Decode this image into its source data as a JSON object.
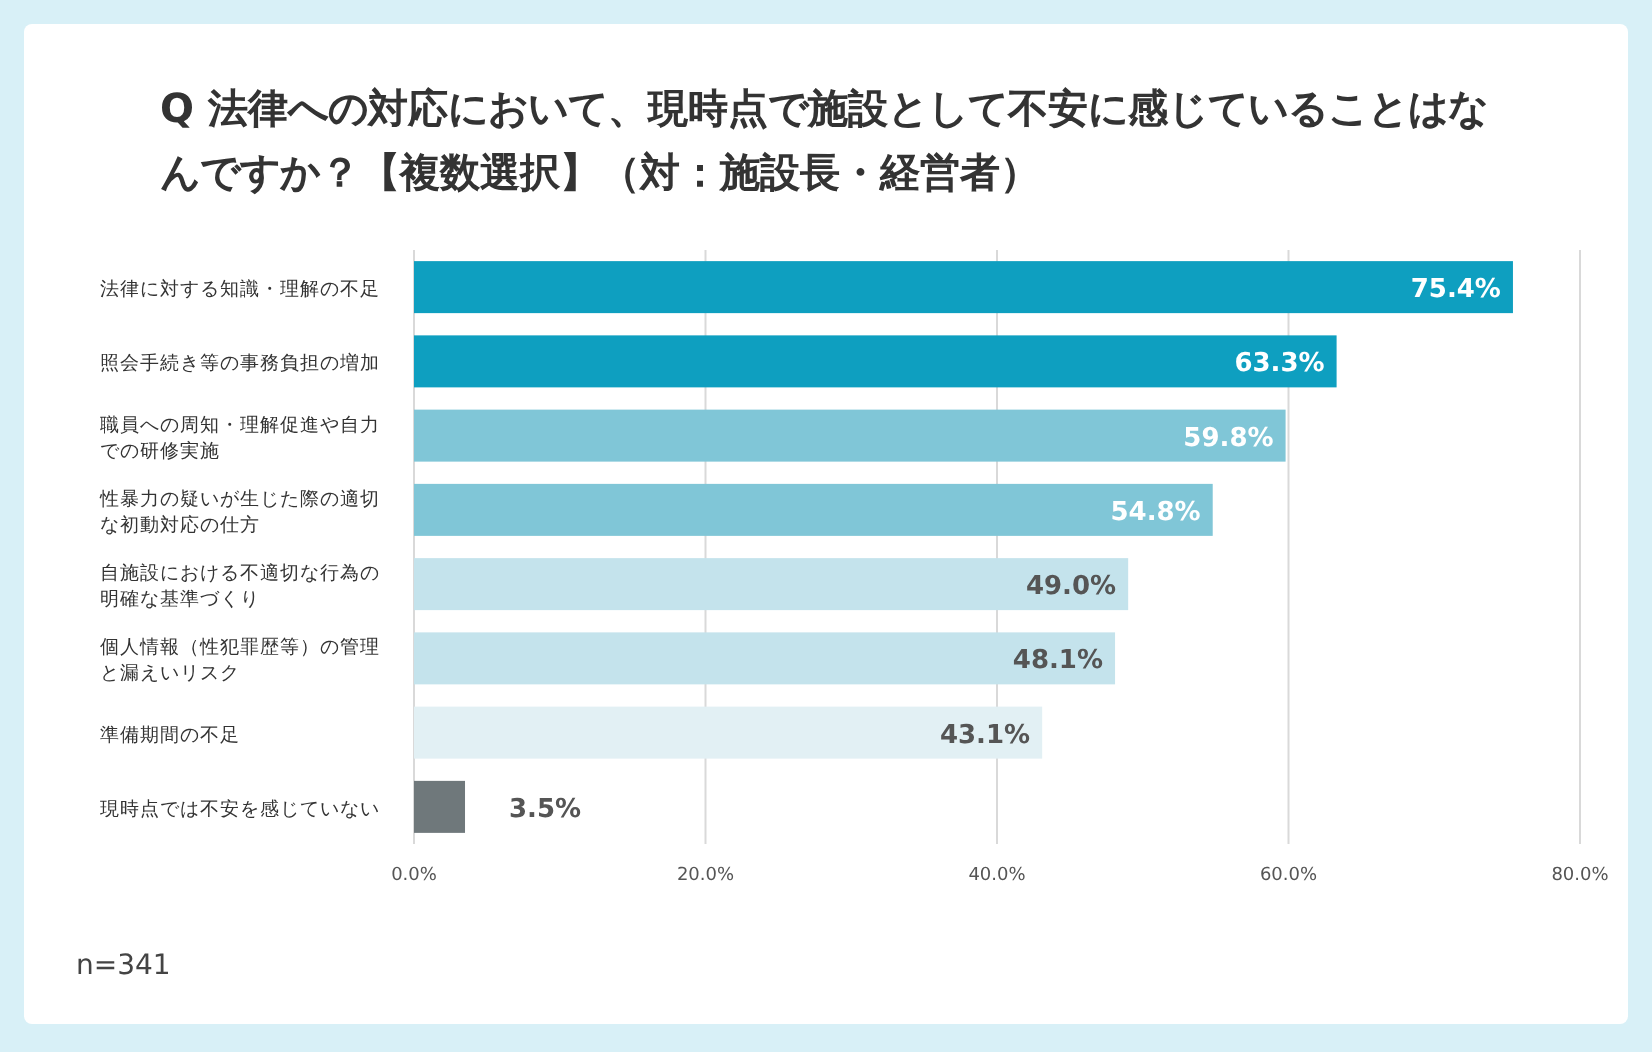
{
  "chart_data": {
    "type": "bar",
    "orientation": "horizontal",
    "title": "Q 法律への対応において、現時点で施設として不安に感じていることはなんですか？【複数選択】（対：施設長・経営者）",
    "categories": [
      "法律に対する知識・理解の不足",
      "照会手続き等の事務負担の増加",
      "職員への周知・理解促進や自力での研修実施",
      "性暴力の疑いが生じた際の適切な初動対応の仕方",
      "自施設における不適切な行為の明確な基準づくり",
      "個人情報（性犯罪歴等）の管理と漏えいリスク",
      "準備期間の不足",
      "現時点では不安を感じていない"
    ],
    "values": [
      75.4,
      63.3,
      59.8,
      54.8,
      49.0,
      48.1,
      43.1,
      3.5
    ],
    "value_labels": [
      "75.4%",
      "63.3%",
      "59.8%",
      "54.8%",
      "49.0%",
      "48.1%",
      "43.1%",
      "3.5%"
    ],
    "colors": [
      "#0e9fc0",
      "#0e9fc0",
      "#80c6d7",
      "#80c6d7",
      "#c4e3ec",
      "#c4e3ec",
      "#e2f0f4",
      "#6f787b"
    ],
    "xlim": [
      0,
      80
    ],
    "xticks": [
      {
        "value": 0,
        "label": "0.0%"
      },
      {
        "value": 20,
        "label": "20.0%"
      },
      {
        "value": 40,
        "label": "40.0%"
      },
      {
        "value": 60,
        "label": "60.0%"
      },
      {
        "value": 80,
        "label": "80.0%"
      }
    ],
    "grid": "x",
    "annotations": [
      "n=341"
    ]
  }
}
